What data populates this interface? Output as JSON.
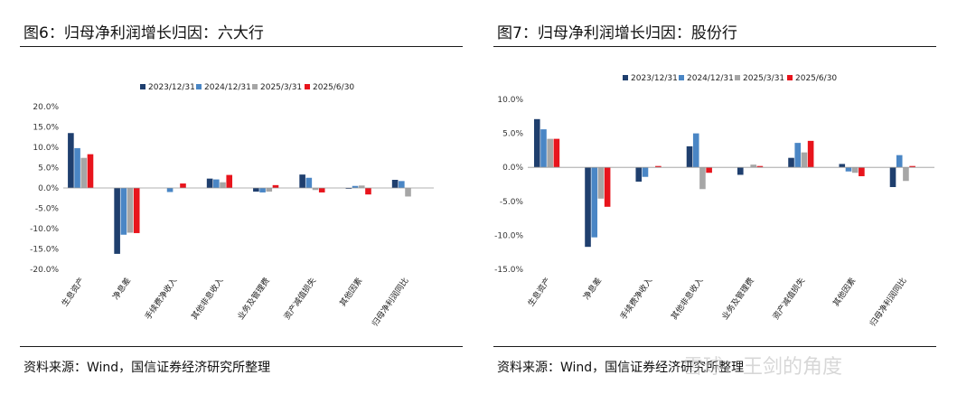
{
  "charts": [
    {
      "figure_title": "图6：归母净利润增长归因：六大行",
      "source": "资料来源：Wind，国信证券经济研究所整理",
      "chart_data": {
        "type": "bar",
        "title": "图6：归母净利润增长归因：六大行",
        "xlabel": "",
        "ylabel": "",
        "ylim": [
          -20,
          20
        ],
        "yticks": [
          20,
          15,
          10,
          5,
          0,
          -5,
          -10,
          -15,
          -20
        ],
        "ytick_labels": [
          "20.0%",
          "15.0%",
          "10.0%",
          "5.0%",
          "0.0%",
          "-5.0%",
          "-10.0%",
          "-15.0%",
          "-20.0%"
        ],
        "legend_position": "top-center",
        "categories": [
          "生息资产",
          "净息差",
          "手续费净收入",
          "其他非息收入",
          "业务及管理费",
          "资产减值损失",
          "其他因素",
          "归母净利润同比"
        ],
        "series": [
          {
            "name": "2023/12/31",
            "color": "#1f3f6e",
            "values": [
              13.5,
              -16.2,
              0.0,
              2.3,
              -0.9,
              3.3,
              -0.2,
              2.0
            ]
          },
          {
            "name": "2024/12/31",
            "color": "#4a86c5",
            "values": [
              9.8,
              -11.5,
              -1.0,
              2.1,
              -1.1,
              2.5,
              0.5,
              1.7
            ]
          },
          {
            "name": "2025/3/31",
            "color": "#a6a6a6",
            "values": [
              7.4,
              -11.0,
              0.0,
              1.4,
              -0.9,
              -0.5,
              0.6,
              -2.1
            ]
          },
          {
            "name": "2025/6/30",
            "color": "#e8141c",
            "values": [
              8.3,
              -11.1,
              1.1,
              3.2,
              0.7,
              -1.1,
              -1.6,
              0.0
            ]
          }
        ]
      }
    },
    {
      "figure_title": "图7：归母净利润增长归因：股份行",
      "source": "资料来源：Wind，国信证券经济研究所整理",
      "chart_data": {
        "type": "bar",
        "title": "图7：归母净利润增长归因：股份行",
        "xlabel": "",
        "ylabel": "",
        "ylim": [
          -15,
          10
        ],
        "yticks": [
          10,
          5,
          0,
          -5,
          -10,
          -15
        ],
        "ytick_labels": [
          "10.0%",
          "5.0%",
          "0.0%",
          "-5.0%",
          "-10.0%",
          "-15.0%"
        ],
        "legend_position": "top-center",
        "categories": [
          "生息资产",
          "净息差",
          "手续费净收入",
          "其他非息收入",
          "业务及管理费",
          "资产减值损失",
          "其他因素",
          "归母净利润同比"
        ],
        "series": [
          {
            "name": "2023/12/31",
            "color": "#1f3f6e",
            "values": [
              7.1,
              -11.7,
              -2.1,
              3.1,
              -1.1,
              1.4,
              0.5,
              -2.9
            ]
          },
          {
            "name": "2024/12/31",
            "color": "#4a86c5",
            "values": [
              5.6,
              -10.3,
              -1.4,
              5.0,
              0.0,
              3.6,
              -0.6,
              1.8
            ]
          },
          {
            "name": "2025/3/31",
            "color": "#a6a6a6",
            "values": [
              4.2,
              -4.6,
              0.0,
              -3.2,
              0.4,
              2.2,
              -0.8,
              -2.0
            ]
          },
          {
            "name": "2025/6/30",
            "color": "#e8141c",
            "values": [
              4.2,
              -5.8,
              0.2,
              -0.8,
              0.2,
              3.9,
              -1.3,
              0.2
            ]
          }
        ]
      }
    }
  ],
  "watermark": "雪球：王剑的角度"
}
